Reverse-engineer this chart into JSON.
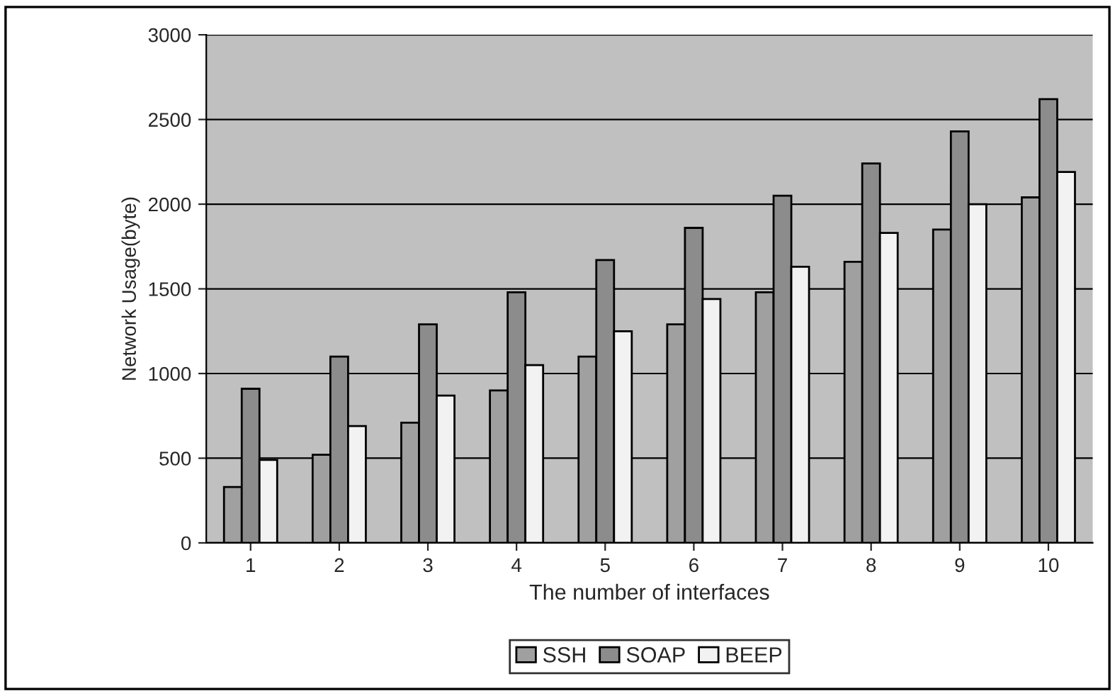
{
  "chart_data": {
    "type": "bar",
    "xlabel": "The number of interfaces",
    "ylabel": "Network Usage(byte)",
    "categories": [
      "1",
      "2",
      "3",
      "4",
      "5",
      "6",
      "7",
      "8",
      "9",
      "10"
    ],
    "series": [
      {
        "name": "SSH",
        "color": "#a0a0a0",
        "values": [
          330,
          520,
          710,
          900,
          1100,
          1290,
          1480,
          1660,
          1850,
          2040
        ]
      },
      {
        "name": "SOAP",
        "color": "#8c8c8c",
        "values": [
          910,
          1100,
          1290,
          1480,
          1670,
          1860,
          2050,
          2240,
          2430,
          2620
        ]
      },
      {
        "name": "BEEP",
        "color": "#f2f2f2",
        "values": [
          490,
          690,
          870,
          1050,
          1250,
          1440,
          1630,
          1830,
          2000,
          2190
        ]
      }
    ],
    "ylim": [
      0,
      3000
    ],
    "yticks": [
      0,
      500,
      1000,
      1500,
      2000,
      2500,
      3000
    ],
    "grid": "y",
    "legend": "bottom"
  }
}
